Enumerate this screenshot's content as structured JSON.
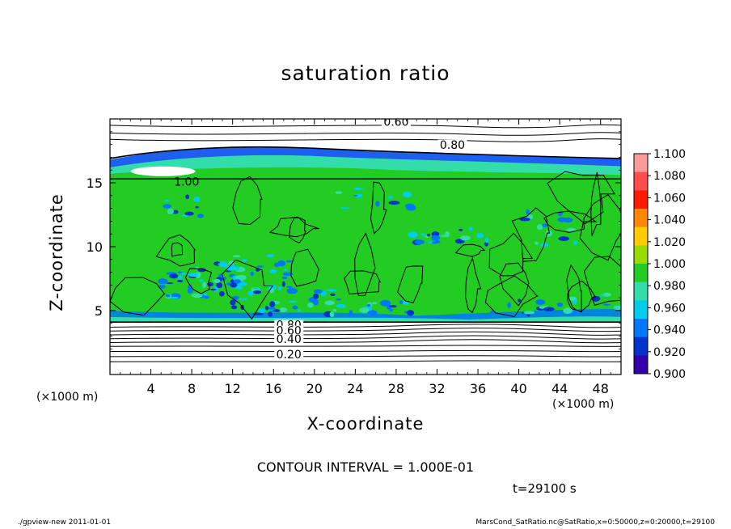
{
  "chart_data": {
    "type": "heatmap",
    "title": "saturation ratio",
    "xlabel": "X-coordinate",
    "ylabel": "Z-coordinate",
    "x_unit_left": "(×1000 m)",
    "x_unit_right": "(×1000 m)",
    "xlim": [
      0,
      50
    ],
    "ylim": [
      0,
      20
    ],
    "x_ticks": [
      "4",
      "8",
      "12",
      "16",
      "20",
      "24",
      "28",
      "32",
      "36",
      "40",
      "44",
      "48"
    ],
    "y_ticks": [
      "5",
      "10",
      "15"
    ],
    "colorbar": {
      "levels": [
        "1.100",
        "1.080",
        "1.060",
        "1.040",
        "1.020",
        "1.000",
        "0.980",
        "0.960",
        "0.940",
        "0.920",
        "0.900"
      ],
      "colors": [
        "#ff9999",
        "#ff4d4d",
        "#ff1a00",
        "#ff8800",
        "#ffcc00",
        "#99dd00",
        "#22cc22",
        "#33ddaa",
        "#00ccee",
        "#0077ff",
        "#0033cc",
        "#3300aa"
      ]
    },
    "contour_labels": [
      "0.60",
      "0.80",
      "1.00",
      "0.80",
      "0.60",
      "0.40",
      "0.20"
    ],
    "contour_interval": "CONTOUR INTERVAL = 1.000E-01",
    "time": "t=29100 s"
  },
  "footer": {
    "left": "./gpview-new   2011-01-01",
    "right": "MarsCond_SatRatio.nc@SatRatio,x=0:50000,z=0:20000,t=29100"
  }
}
